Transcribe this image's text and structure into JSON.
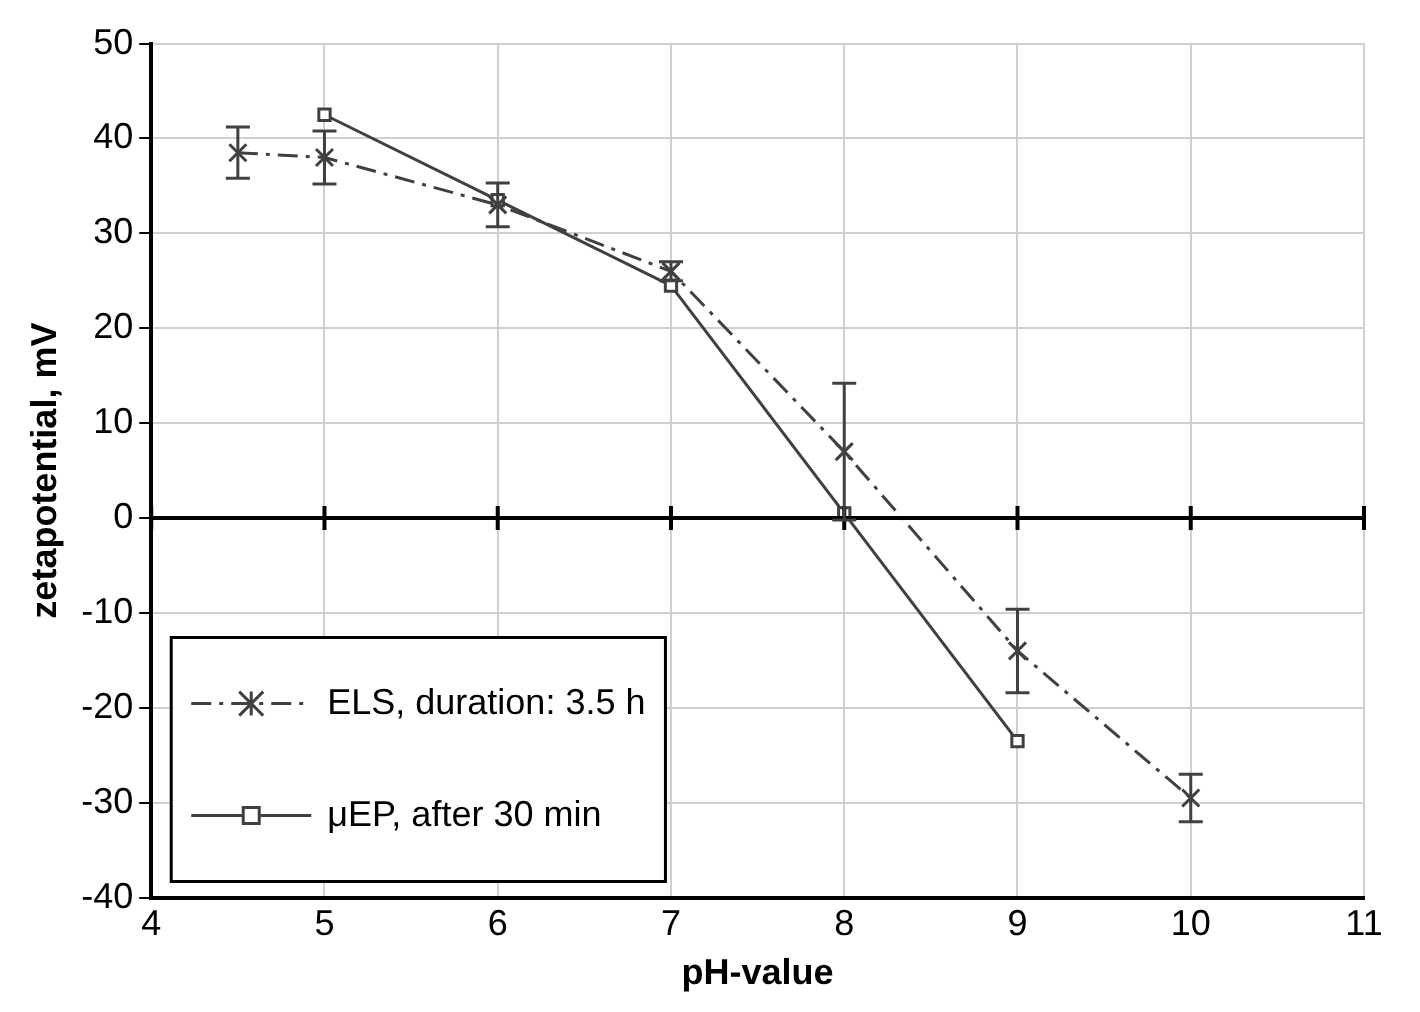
{
  "chart_data": {
    "type": "line",
    "xlabel": "pH-value",
    "ylabel": "zetapotential, mV",
    "xlim": [
      4,
      11
    ],
    "xticks": [
      4,
      5,
      6,
      7,
      8,
      9,
      10,
      11
    ],
    "ylim": [
      -40,
      50
    ],
    "yticks": [
      -40,
      -30,
      -20,
      -10,
      0,
      10,
      20,
      30,
      40,
      50
    ],
    "grid": true,
    "legend": "bottom left",
    "ref_lines": [
      {
        "axis": "y",
        "value": 0,
        "color": "#000000"
      }
    ],
    "series": [
      {
        "name": "ELS, duration: 3.5 h",
        "color": "#404040",
        "marker": "cross",
        "line_style": "dashed",
        "x": [
          4.5,
          5,
          6,
          7,
          8,
          9,
          10
        ],
        "values": [
          38.5,
          38,
          33,
          26,
          7,
          -14,
          -29.5
        ],
        "errors": [
          2.7,
          2.8,
          2.3,
          1,
          7.2,
          4.4,
          2.5
        ]
      },
      {
        "name": "μEP, after 30 min",
        "color": "#404040",
        "marker": "square",
        "line_style": "solid",
        "x": [
          5,
          6,
          7,
          8,
          9
        ],
        "values": [
          42.5,
          33.5,
          24.5,
          0.5,
          -23.5
        ]
      }
    ]
  }
}
